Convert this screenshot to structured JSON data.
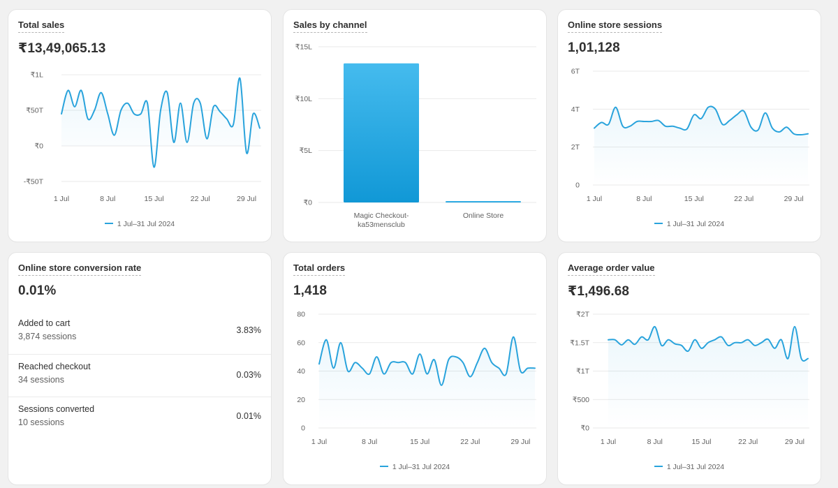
{
  "cards": {
    "total_sales": {
      "title": "Total sales",
      "value": "₹13,49,065.13",
      "legend": "1 Jul–31 Jul 2024"
    },
    "sales_by_channel": {
      "title": "Sales by channel"
    },
    "online_store_sessions": {
      "title": "Online store sessions",
      "value": "1,01,128",
      "legend": "1 Jul–31 Jul 2024"
    },
    "conversion_rate": {
      "title": "Online store conversion rate",
      "value": "0.01%",
      "rows": [
        {
          "label": "Added to cart",
          "sub": "3,874 sessions",
          "pct": "3.83%"
        },
        {
          "label": "Reached checkout",
          "sub": "34 sessions",
          "pct": "0.03%"
        },
        {
          "label": "Sessions converted",
          "sub": "10 sessions",
          "pct": "0.01%"
        }
      ]
    },
    "total_orders": {
      "title": "Total orders",
      "value": "1,418",
      "legend": "1 Jul–31 Jul 2024"
    },
    "average_order_value": {
      "title": "Average order value",
      "value": "₹1,496.68",
      "legend": "1 Jul–31 Jul 2024"
    }
  },
  "colors": {
    "line": "#29a3dc",
    "bar_top": "#45bbee",
    "bar_bottom": "#1198d6",
    "grid": "#e9e9e9"
  },
  "chart_data": [
    {
      "id": "total_sales",
      "type": "line",
      "series": [
        {
          "name": "1 Jul–31 Jul 2024",
          "values": [
            45,
            78,
            55,
            78,
            38,
            50,
            75,
            45,
            15,
            50,
            60,
            45,
            45,
            60,
            -30,
            50,
            75,
            5,
            60,
            5,
            60,
            60,
            10,
            55,
            48,
            38,
            30,
            95,
            -10,
            45,
            25
          ]
        }
      ],
      "ylim": [
        -55,
        105
      ],
      "yticks": [
        -50,
        0,
        50,
        100
      ],
      "ytick_labels": [
        "-₹50T",
        "₹0",
        "₹50T",
        "₹1L"
      ],
      "xtick_positions": [
        0,
        7,
        14,
        21,
        28
      ],
      "xtick_labels": [
        "1 Jul",
        "8 Jul",
        "15 Jul",
        "22 Jul",
        "29 Jul"
      ],
      "grid": true,
      "legend": "bottom-center"
    },
    {
      "id": "sales_by_channel",
      "type": "bar",
      "categories": [
        "Magic Checkout-\nka53mensclub",
        "Online Store"
      ],
      "values": [
        13.4,
        0.1
      ],
      "ylim": [
        0,
        15
      ],
      "yticks": [
        0,
        5,
        10,
        15
      ],
      "ytick_labels": [
        "₹0",
        "₹5L",
        "₹10L",
        "₹15L"
      ],
      "grid": true
    },
    {
      "id": "online_store_sessions",
      "type": "line",
      "series": [
        {
          "name": "1 Jul–31 Jul 2024",
          "values": [
            3.0,
            3.3,
            3.2,
            4.1,
            3.1,
            3.1,
            3.35,
            3.35,
            3.35,
            3.4,
            3.1,
            3.1,
            3.0,
            2.95,
            3.7,
            3.5,
            4.1,
            4.0,
            3.2,
            3.4,
            3.7,
            3.9,
            3.05,
            2.9,
            3.8,
            3.0,
            2.8,
            3.05,
            2.7,
            2.65,
            2.7
          ]
        }
      ],
      "ylim": [
        0,
        6
      ],
      "yticks": [
        0,
        2,
        4,
        6
      ],
      "ytick_labels": [
        "0",
        "2T",
        "4T",
        "6T"
      ],
      "xtick_positions": [
        0,
        7,
        14,
        21,
        28
      ],
      "xtick_labels": [
        "1 Jul",
        "8 Jul",
        "15 Jul",
        "22 Jul",
        "29 Jul"
      ],
      "grid": true,
      "legend": "bottom-center"
    },
    {
      "id": "total_orders",
      "type": "line",
      "series": [
        {
          "name": "1 Jul–31 Jul 2024",
          "values": [
            45,
            62,
            42,
            60,
            40,
            46,
            42,
            38,
            50,
            38,
            46,
            46,
            46,
            38,
            52,
            38,
            48,
            30,
            48,
            50,
            46,
            36,
            46,
            56,
            46,
            42,
            38,
            64,
            40,
            42,
            42
          ]
        }
      ],
      "ylim": [
        0,
        80
      ],
      "yticks": [
        0,
        20,
        40,
        60,
        80
      ],
      "ytick_labels": [
        "0",
        "20",
        "40",
        "60",
        "80"
      ],
      "xtick_positions": [
        0,
        7,
        14,
        21,
        28
      ],
      "xtick_labels": [
        "1 Jul",
        "8 Jul",
        "15 Jul",
        "22 Jul",
        "29 Jul"
      ],
      "grid": true,
      "legend": "bottom-center"
    },
    {
      "id": "average_order_value",
      "type": "line",
      "series": [
        {
          "name": "1 Jul–31 Jul 2024",
          "values": [
            1550,
            1550,
            1460,
            1550,
            1470,
            1600,
            1550,
            1780,
            1450,
            1550,
            1480,
            1450,
            1350,
            1550,
            1400,
            1500,
            1550,
            1600,
            1450,
            1500,
            1500,
            1550,
            1450,
            1500,
            1560,
            1400,
            1550,
            1220,
            1780,
            1220,
            1220
          ]
        }
      ],
      "ylim": [
        0,
        2000
      ],
      "yticks": [
        0,
        500,
        1000,
        1500,
        2000
      ],
      "ytick_labels": [
        "₹0",
        "₹500",
        "₹1T",
        "₹1.5T",
        "₹2T"
      ],
      "xtick_positions": [
        0,
        7,
        14,
        21,
        28
      ],
      "xtick_labels": [
        "1 Jul",
        "8 Jul",
        "15 Jul",
        "22 Jul",
        "29 Jul"
      ],
      "grid": true,
      "legend": "bottom-center"
    }
  ]
}
